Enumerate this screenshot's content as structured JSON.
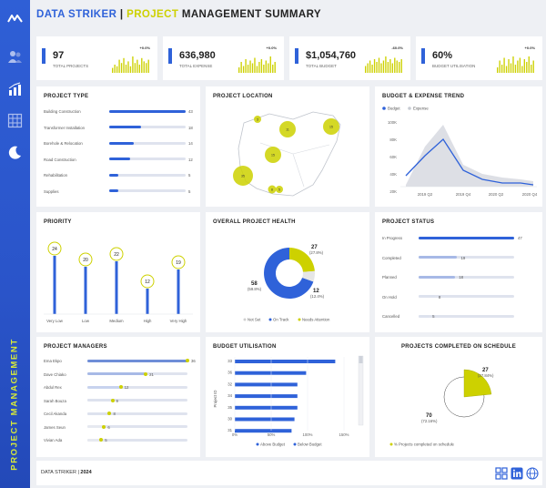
{
  "header": {
    "brand": "DATA STRIKER",
    "sep": "|",
    "title_highlight": "PROJECT",
    "title_rest": "MANAGEMENT SUMMARY"
  },
  "sidebar": {
    "vertical_label": "PROJECT MANAGEMENT",
    "icons": [
      "logo-icon",
      "users-icon",
      "bar-chart-icon",
      "table-icon",
      "moon-icon"
    ]
  },
  "kpis": [
    {
      "value": "97",
      "label": "TOTAL PROJECTS",
      "change": "+0.0%",
      "spark": [
        3,
        5,
        4,
        8,
        6,
        9,
        5,
        7,
        4,
        10,
        6,
        8,
        5,
        9,
        7,
        6,
        8
      ]
    },
    {
      "value": "636,980",
      "label": "TOTAL EXPENSE",
      "change": "+0.0%",
      "spark": [
        4,
        8,
        5,
        10,
        6,
        9,
        7,
        11,
        5,
        8,
        10,
        6,
        9,
        7,
        12,
        6,
        8
      ]
    },
    {
      "value": "$1,054,760",
      "label": "TOTAL BUDGET",
      "change": "-60.0%",
      "spark": [
        5,
        7,
        9,
        6,
        10,
        8,
        11,
        7,
        9,
        12,
        8,
        10,
        7,
        11,
        9,
        8,
        10
      ]
    },
    {
      "value": "60%",
      "label": "BUDGET UTILISATION",
      "change": "+0.0%",
      "spark": [
        4,
        9,
        6,
        11,
        5,
        10,
        7,
        12,
        6,
        9,
        11,
        5,
        10,
        8,
        12,
        6,
        9
      ]
    }
  ],
  "project_type": {
    "title": "PROJECT TYPE",
    "items": [
      {
        "label": "Building Construction",
        "value": 43
      },
      {
        "label": "Transformer Installation",
        "value": 18
      },
      {
        "label": "Borehole & Relocation",
        "value": 14
      },
      {
        "label": "Road Construction",
        "value": 12
      },
      {
        "label": "Rehabilitation",
        "value": 5
      },
      {
        "label": "Supplies",
        "value": 5
      }
    ]
  },
  "project_location": {
    "title": "PROJECT LOCATION",
    "bubbles": [
      "3",
      "11",
      "15",
      "15",
      "35",
      "8",
      "5"
    ]
  },
  "budget_trend": {
    "title": "BUDGET & EXPENSE TREND",
    "legend": [
      "Budget",
      "Expense"
    ],
    "y_ticks": [
      "100K",
      "80K",
      "60K",
      "40K",
      "20K",
      "0K"
    ],
    "x_ticks": [
      "2019 Q2",
      "2019 Q4",
      "2020 Q2",
      "2020 Q4"
    ]
  },
  "priority": {
    "title": "PRIORITY",
    "items": [
      {
        "label": "Very Low",
        "value": "24"
      },
      {
        "label": "Low",
        "value": "20"
      },
      {
        "label": "Medium",
        "value": "22"
      },
      {
        "label": "High",
        "value": "12"
      },
      {
        "label": "Very High",
        "value": "19"
      }
    ]
  },
  "health": {
    "title": "OVERALL PROJECT HEALTH",
    "segments": [
      {
        "label": "Not Set",
        "value": "",
        "pct": ""
      },
      {
        "label": "On Track",
        "value": "58",
        "pct": "(59.8%)"
      },
      {
        "label": "Needs Attention",
        "value": "27",
        "pct": "(27.8%)"
      },
      {
        "label": "",
        "value": "12",
        "pct": "(12.4%)"
      }
    ]
  },
  "project_status": {
    "title": "PROJECT STATUS",
    "items": [
      {
        "label": "In Progress",
        "value": 47
      },
      {
        "label": "Completed",
        "value": 19
      },
      {
        "label": "Planned",
        "value": 18
      },
      {
        "label": "On Hold",
        "value": 8
      },
      {
        "label": "Cancelled",
        "value": 5
      }
    ]
  },
  "managers": {
    "title": "PROJECT MANAGERS",
    "items": [
      {
        "label": "Ema Ekpo",
        "value": 36
      },
      {
        "label": "Dave Chiako",
        "value": 21
      },
      {
        "label": "Abdul Rex",
        "value": 12
      },
      {
        "label": "Sarah Bouza",
        "value": 9
      },
      {
        "label": "Cecil Akanda",
        "value": 8
      },
      {
        "label": "James Seun",
        "value": 6
      },
      {
        "label": "Vivian Ada",
        "value": 5
      }
    ]
  },
  "budget_util": {
    "title": "BUDGET UTILISATION",
    "y_label": "Project ID",
    "rows": [
      "33",
      "36",
      "32",
      "34",
      "35",
      "30",
      "31"
    ],
    "values": [
      1.38,
      0.98,
      0.86,
      0.86,
      0.86,
      0.82,
      0.78
    ],
    "x_ticks": [
      "0%",
      "50%",
      "100%",
      "150%"
    ],
    "legend": [
      "Above Budget",
      "Below Budget"
    ]
  },
  "completed_schedule": {
    "title": "PROJECTS COMPLETED ON SCHEDULE",
    "on_value": "27",
    "on_pct": "(27.84%)",
    "off_value": "70",
    "off_pct": "(72.16%)",
    "legend": "% Projects completed on schedule"
  },
  "footer": {
    "brand": "DATA STRIKER",
    "sep": "|",
    "year": "2024",
    "icons": [
      "grid-icon",
      "linkedin-icon",
      "globe-icon"
    ]
  },
  "colors": {
    "blue": "#2f62d9",
    "yellow": "#cdd100",
    "light_blue": "#a7b9e6",
    "grey": "#d9dde6"
  }
}
